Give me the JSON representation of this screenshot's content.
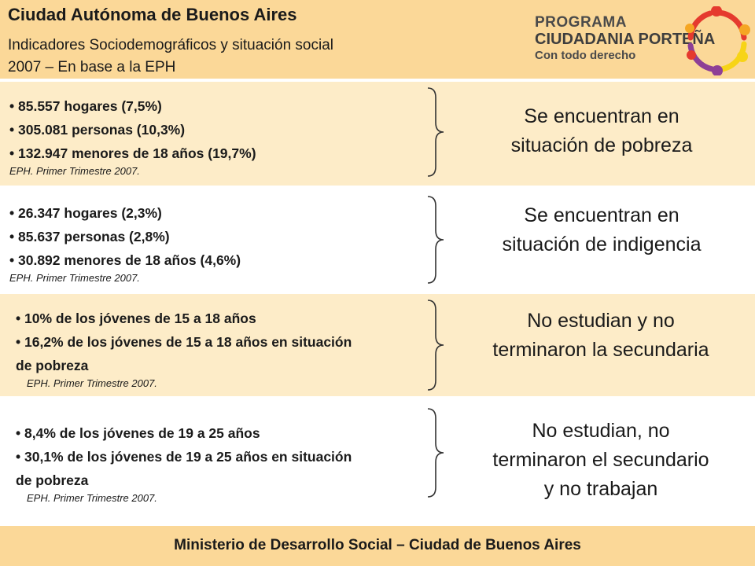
{
  "header": {
    "title": "Ciudad Autónoma de Buenos Aires",
    "subtitle_line1": "Indicadores Sociodemográficos y situación social",
    "subtitle_line2": "2007 – En base a la EPH"
  },
  "logo": {
    "line1": "PROGRAMA",
    "line2": "CIUDADANIA PORTEÑA",
    "line3": "Con todo derecho",
    "colors": [
      "#e53a2e",
      "#f5a623",
      "#f7d417",
      "#8e3f96"
    ]
  },
  "sections": [
    {
      "bullets": [
        "85.557 hogares (7,5%)",
        "305.081 personas (10,3%)",
        "132.947 menores de 18 años (19,7%)"
      ],
      "source": "EPH. Primer Trimestre 2007.",
      "result_line1": "Se encuentran en",
      "result_line2": "situación de pobreza"
    },
    {
      "bullets": [
        "26.347 hogares (2,3%)",
        "85.637 personas (2,8%)",
        "30.892 menores de 18 años (4,6%)"
      ],
      "source": "EPH. Primer Trimestre 2007.",
      "result_line1": "Se encuentran en",
      "result_line2": "situación de indigencia"
    },
    {
      "bullets": [
        "10% de los jóvenes de 15 a 18  años",
        "16,2% de los jóvenes de 15 a 18 años en situación de pobreza"
      ],
      "source": "EPH. Primer Trimestre 2007.",
      "result_line1": "No estudian y no",
      "result_line2": "terminaron la secundaria"
    },
    {
      "bullets": [
        "8,4% de los jóvenes de 19 a 25 años",
        "30,1% de los jóvenes de 19 a 25 años en situación de pobreza"
      ],
      "source": "EPH. Primer Trimestre 2007.",
      "result_line1": "No estudian, no",
      "result_line2": "terminaron el secundario",
      "result_line3": "y no trabajan"
    }
  ],
  "footer": {
    "text": "Ministerio de Desarrollo Social – Ciudad de Buenos Aires"
  }
}
